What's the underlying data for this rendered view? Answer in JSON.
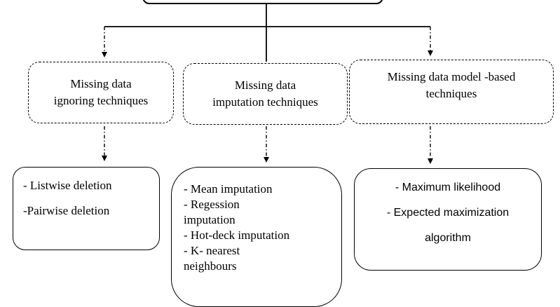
{
  "root": {
    "label": ""
  },
  "categories": [
    {
      "lines": [
        "Missing data",
        "ignoring techniques"
      ]
    },
    {
      "lines": [
        "Missing data",
        "imputation  techniques"
      ]
    },
    {
      "lines": [
        "Missing data  model -based",
        "techniques"
      ]
    }
  ],
  "methods": [
    {
      "items": [
        "- Listwise deletion",
        "-Pairwise deletion"
      ]
    },
    {
      "items": [
        "- Mean imputation",
        "- Regession",
        "imputation",
        "- Hot-deck imputation",
        "- K- nearest",
        "neighbours"
      ]
    },
    {
      "items": [
        "- Maximum likelihood",
        "- Expected maximization",
        "algorithm"
      ]
    }
  ]
}
